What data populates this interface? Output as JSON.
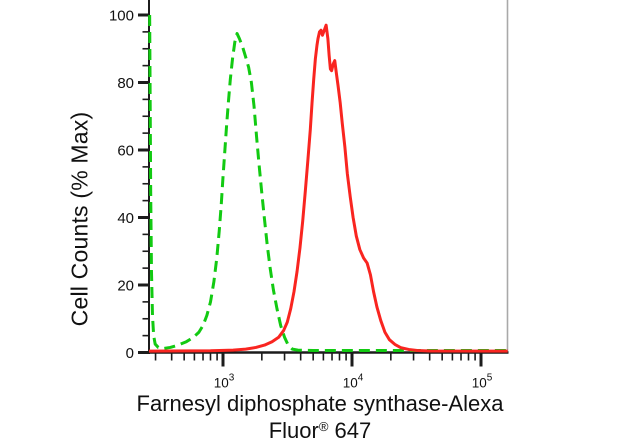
{
  "figure": {
    "y_axis_title": "Cell Counts (% Max)",
    "x_axis_title_line1": "Farnesyl diphosphate synthase-Alexa",
    "x_axis_title_line2_pre": "Fluor",
    "x_axis_title_line2_sup": "®",
    "x_axis_title_line2_post": " 647"
  },
  "chart_data": {
    "type": "line",
    "subtype": "flow-cytometry-histogram-overlay",
    "title": "",
    "xlabel": "Farnesyl diphosphate synthase-Alexa Fluor® 647",
    "ylabel": "Cell Counts (% Max)",
    "x_scale": "log",
    "x_domain": [
      267,
      162000
    ],
    "ylim": [
      0,
      100
    ],
    "grid": false,
    "legend": "none",
    "axis_color": "#1c1c1c",
    "right_border_color": "#a9a9a9",
    "tick_label_color": "#111111",
    "y_major_ticks": [
      {
        "value": 0,
        "label": "0"
      },
      {
        "value": 20,
        "label": "20"
      },
      {
        "value": 40,
        "label": "40"
      },
      {
        "value": 60,
        "label": "60"
      },
      {
        "value": 80,
        "label": "80"
      },
      {
        "value": 100,
        "label": "100"
      }
    ],
    "y_minor_step": 5,
    "x_major_ticks": [
      {
        "value": 1000,
        "base": "10",
        "exp": "3"
      },
      {
        "value": 10000,
        "base": "10",
        "exp": "4"
      },
      {
        "value": 100000,
        "base": "10",
        "exp": "5"
      }
    ],
    "x_minor_tick_multiples": [
      2,
      3,
      4,
      5,
      6,
      7,
      8,
      9
    ],
    "series": [
      {
        "name": "control-green-dashed",
        "color": "#12ca12",
        "line_style": "dashed",
        "peak": {
          "x": 1285,
          "y": 94.5
        },
        "points": [
          [
            270,
            100
          ],
          [
            272,
            80
          ],
          [
            275,
            48
          ],
          [
            279,
            24
          ],
          [
            284,
            11
          ],
          [
            290,
            5
          ],
          [
            298,
            2.5
          ],
          [
            315,
            1.5
          ],
          [
            345,
            1.2
          ],
          [
            390,
            1.5
          ],
          [
            450,
            2.2
          ],
          [
            520,
            3.2
          ],
          [
            590,
            4.5
          ],
          [
            650,
            6
          ],
          [
            700,
            8
          ],
          [
            750,
            11
          ],
          [
            800,
            15
          ],
          [
            850,
            21
          ],
          [
            895,
            28
          ],
          [
            935,
            36
          ],
          [
            970,
            44
          ],
          [
            1000,
            52
          ],
          [
            1030,
            59
          ],
          [
            1065,
            67
          ],
          [
            1100,
            74
          ],
          [
            1140,
            81
          ],
          [
            1185,
            87
          ],
          [
            1235,
            92
          ],
          [
            1285,
            94.5
          ],
          [
            1340,
            93
          ],
          [
            1420,
            90.5
          ],
          [
            1500,
            87.5
          ],
          [
            1580,
            84.5
          ],
          [
            1660,
            80
          ],
          [
            1740,
            73
          ],
          [
            1820,
            64
          ],
          [
            1900,
            56
          ],
          [
            1990,
            48
          ],
          [
            2090,
            40
          ],
          [
            2200,
            32
          ],
          [
            2320,
            25
          ],
          [
            2460,
            18.5
          ],
          [
            2620,
            13
          ],
          [
            2800,
            8
          ],
          [
            3000,
            4.5
          ],
          [
            3200,
            2.2
          ],
          [
            3450,
            1
          ],
          [
            3800,
            0.7
          ],
          [
            5000,
            0.6
          ],
          [
            161000,
            0.6
          ]
        ]
      },
      {
        "name": "stained-red-solid",
        "color": "#f92520",
        "line_style": "solid",
        "peak": {
          "x": 6300,
          "y": 97
        },
        "points": [
          [
            267,
            0.4
          ],
          [
            800,
            0.5
          ],
          [
            1200,
            0.7
          ],
          [
            1500,
            1
          ],
          [
            1800,
            1.5
          ],
          [
            2100,
            2.2
          ],
          [
            2400,
            3.2
          ],
          [
            2700,
            4.5
          ],
          [
            2950,
            6.5
          ],
          [
            3150,
            9
          ],
          [
            3350,
            13
          ],
          [
            3550,
            18
          ],
          [
            3750,
            24
          ],
          [
            3950,
            31
          ],
          [
            4150,
            39
          ],
          [
            4350,
            48
          ],
          [
            4550,
            57
          ],
          [
            4750,
            66
          ],
          [
            4900,
            74
          ],
          [
            5050,
            81
          ],
          [
            5200,
            87
          ],
          [
            5350,
            91
          ],
          [
            5450,
            93
          ],
          [
            5600,
            95
          ],
          [
            5750,
            95.5
          ],
          [
            5900,
            94
          ],
          [
            6100,
            95.5
          ],
          [
            6300,
            97
          ],
          [
            6500,
            93
          ],
          [
            6650,
            88
          ],
          [
            6800,
            84
          ],
          [
            6950,
            83.5
          ],
          [
            7150,
            85.5
          ],
          [
            7350,
            86.5
          ],
          [
            7550,
            83
          ],
          [
            7800,
            79
          ],
          [
            8100,
            74
          ],
          [
            8400,
            68
          ],
          [
            8800,
            61
          ],
          [
            9200,
            53
          ],
          [
            9700,
            46
          ],
          [
            10200,
            40
          ],
          [
            10800,
            34.5
          ],
          [
            11500,
            30.5
          ],
          [
            12300,
            28
          ],
          [
            13100,
            26.5
          ],
          [
            13900,
            23
          ],
          [
            14700,
            18
          ],
          [
            15600,
            13.5
          ],
          [
            16700,
            9.5
          ],
          [
            18000,
            6
          ],
          [
            19500,
            3.8
          ],
          [
            21500,
            2.4
          ],
          [
            24000,
            1.4
          ],
          [
            27500,
            0.9
          ],
          [
            32000,
            0.6
          ],
          [
            40000,
            0.45
          ],
          [
            161000,
            0.4
          ]
        ]
      }
    ]
  }
}
